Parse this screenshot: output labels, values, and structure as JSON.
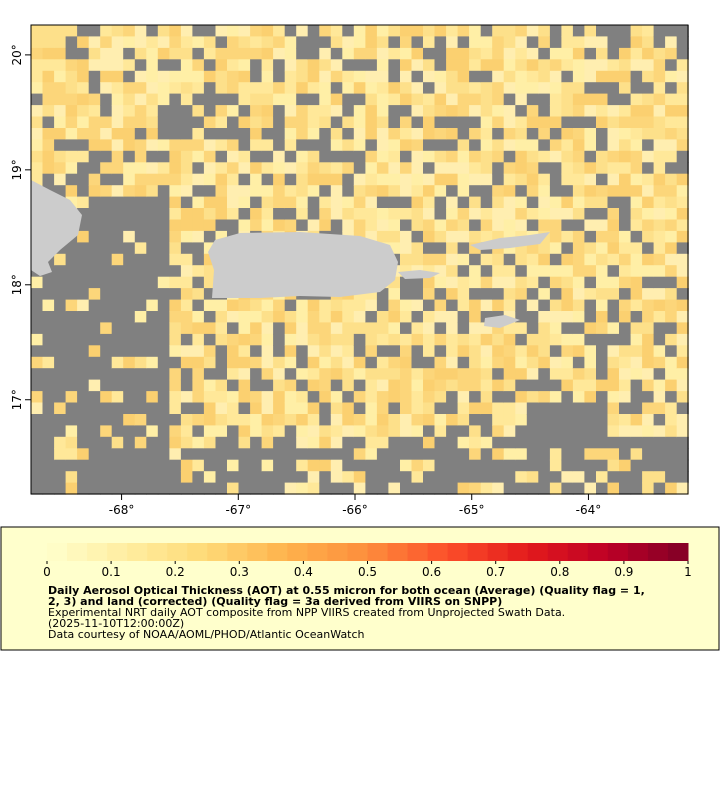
{
  "map": {
    "xlim": [
      -68.776,
      -63.147
    ],
    "ylim": [
      16.18,
      20.26
    ],
    "x_ticks": [
      {
        "value": -68,
        "label": "-68°"
      },
      {
        "value": -67,
        "label": "-67°"
      },
      {
        "value": -66,
        "label": "-66°"
      },
      {
        "value": -65,
        "label": "-65°"
      },
      {
        "value": -64,
        "label": "-64°"
      }
    ],
    "y_ticks": [
      {
        "value": 20,
        "label": "20°"
      },
      {
        "value": 19,
        "label": "19°"
      },
      {
        "value": 18,
        "label": "18°"
      },
      {
        "value": 17,
        "label": "17°"
      }
    ]
  },
  "colorbar": {
    "range": [
      0,
      1
    ],
    "ticks": [
      0,
      0.1,
      0.2,
      0.3,
      0.4,
      0.5,
      0.6,
      0.7,
      0.8,
      0.9,
      1
    ],
    "palette": [
      "#ffffcc",
      "#ffeda0",
      "#fed976",
      "#feb24c",
      "#fd8d3c",
      "#fc4e2a",
      "#e31a1c",
      "#bd0026",
      "#800026"
    ]
  },
  "caption": {
    "title_lines": [
      "Daily Aerosol Optical Thickness (AOT) at 0.55 micron for both ocean (Average) (Quality flag = 1,",
      "2, 3) and land (corrected) (Quality flag = 3a derived from VIIRS on SNPP)"
    ],
    "lines": [
      "Experimental NRT daily AOT composite from NPP VIIRS created from Unprojected Swath Data.",
      "(2025-11-10T12:00:00Z)",
      "Data courtesy of NOAA/AOML/PHOD/Atlantic OceanWatch"
    ]
  }
}
